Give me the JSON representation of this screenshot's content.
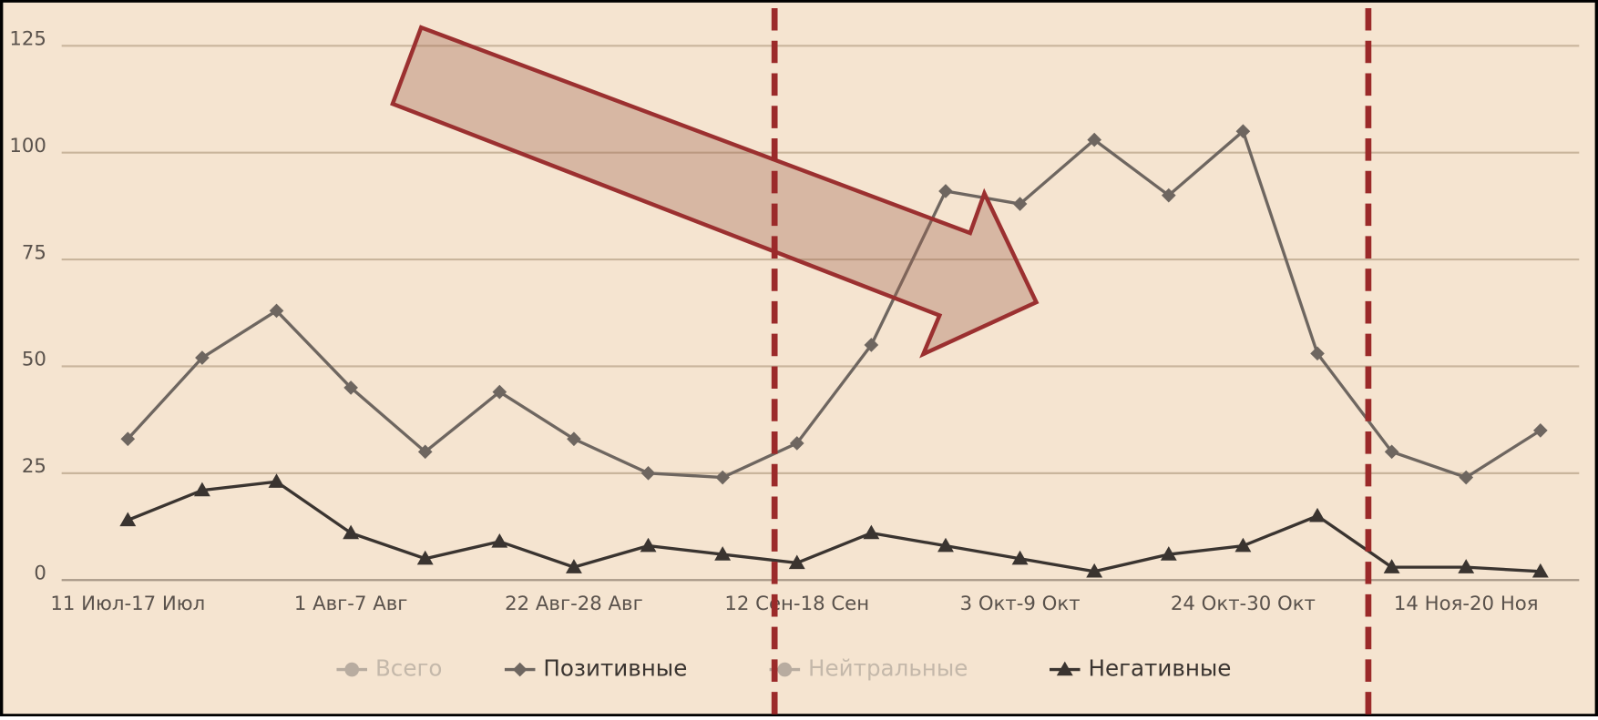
{
  "chart_data": {
    "type": "line",
    "categories": [
      "11 Июл-17 Июл",
      null,
      null,
      "1 Авг-7 Авг",
      null,
      null,
      "22 Авг-28 Авг",
      null,
      null,
      "12 Сен-18 Сен",
      null,
      null,
      "3 Окт-9 Окт",
      null,
      null,
      "24 Окт-30 Окт",
      null,
      null,
      "14 Ноя-20 Ноя",
      null
    ],
    "series": [
      {
        "name": "Всего",
        "color": "#b8aca0",
        "visible": false
      },
      {
        "name": "Позитивные",
        "color": "#6e6660",
        "marker": "diamond",
        "values": [
          33,
          52,
          63,
          45,
          30,
          44,
          33,
          25,
          24,
          32,
          55,
          91,
          88,
          103,
          90,
          105,
          53,
          30,
          24,
          35
        ]
      },
      {
        "name": "Нейтральные",
        "color": "#b8aca0",
        "visible": false
      },
      {
        "name": "Негативные",
        "color": "#3a3430",
        "marker": "triangle",
        "values": [
          14,
          21,
          23,
          11,
          5,
          9,
          3,
          8,
          6,
          4,
          11,
          8,
          5,
          2,
          6,
          8,
          15,
          3,
          3,
          2
        ]
      }
    ],
    "ylim": [
      0,
      125
    ],
    "yticks": [
      0,
      25,
      50,
      75,
      100,
      125
    ],
    "grid": true,
    "legend": "bottom"
  }
}
